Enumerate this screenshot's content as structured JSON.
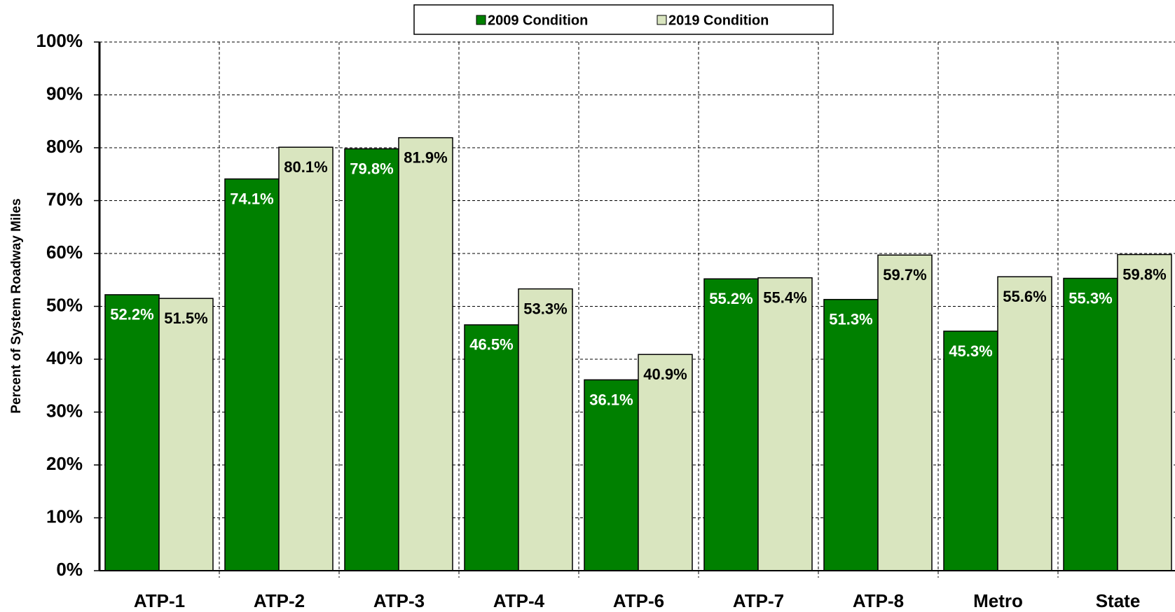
{
  "chart_data": {
    "type": "bar",
    "y_label": "Percent of System Roadway Miles",
    "categories": [
      "ATP-1",
      "ATP-2",
      "ATP-3",
      "ATP-4",
      "ATP-6",
      "ATP-7",
      "ATP-8",
      "Metro",
      "State"
    ],
    "series": [
      {
        "name": "2009 Condition",
        "color": "#008000",
        "values": [
          52.2,
          74.1,
          79.8,
          46.5,
          36.1,
          55.2,
          51.3,
          45.3,
          55.3
        ],
        "value_labels": [
          "52.2%",
          "74.1%",
          "79.8%",
          "46.5%",
          "36.1%",
          "55.2%",
          "51.3%",
          "45.3%",
          "55.3%"
        ]
      },
      {
        "name": "2019 Condition",
        "color": "#d9e5bf",
        "values": [
          51.5,
          80.1,
          81.9,
          53.3,
          40.9,
          55.4,
          59.7,
          55.6,
          59.8
        ],
        "value_labels": [
          "51.5%",
          "80.1%",
          "81.9%",
          "53.3%",
          "40.9%",
          "55.4%",
          "59.7%",
          "55.6%",
          "59.8%"
        ]
      }
    ],
    "ylim": [
      0,
      100
    ],
    "yticks": [
      {
        "value": 0,
        "label": "0%"
      },
      {
        "value": 10,
        "label": "10%"
      },
      {
        "value": 20,
        "label": "20%"
      },
      {
        "value": 30,
        "label": "30%"
      },
      {
        "value": 40,
        "label": "40%"
      },
      {
        "value": 50,
        "label": "50%"
      },
      {
        "value": 60,
        "label": "60%"
      },
      {
        "value": 70,
        "label": "70%"
      },
      {
        "value": 80,
        "label": "80%"
      },
      {
        "value": 90,
        "label": "90%"
      },
      {
        "value": 100,
        "label": "100%"
      }
    ],
    "grid": true,
    "legend": "top"
  }
}
